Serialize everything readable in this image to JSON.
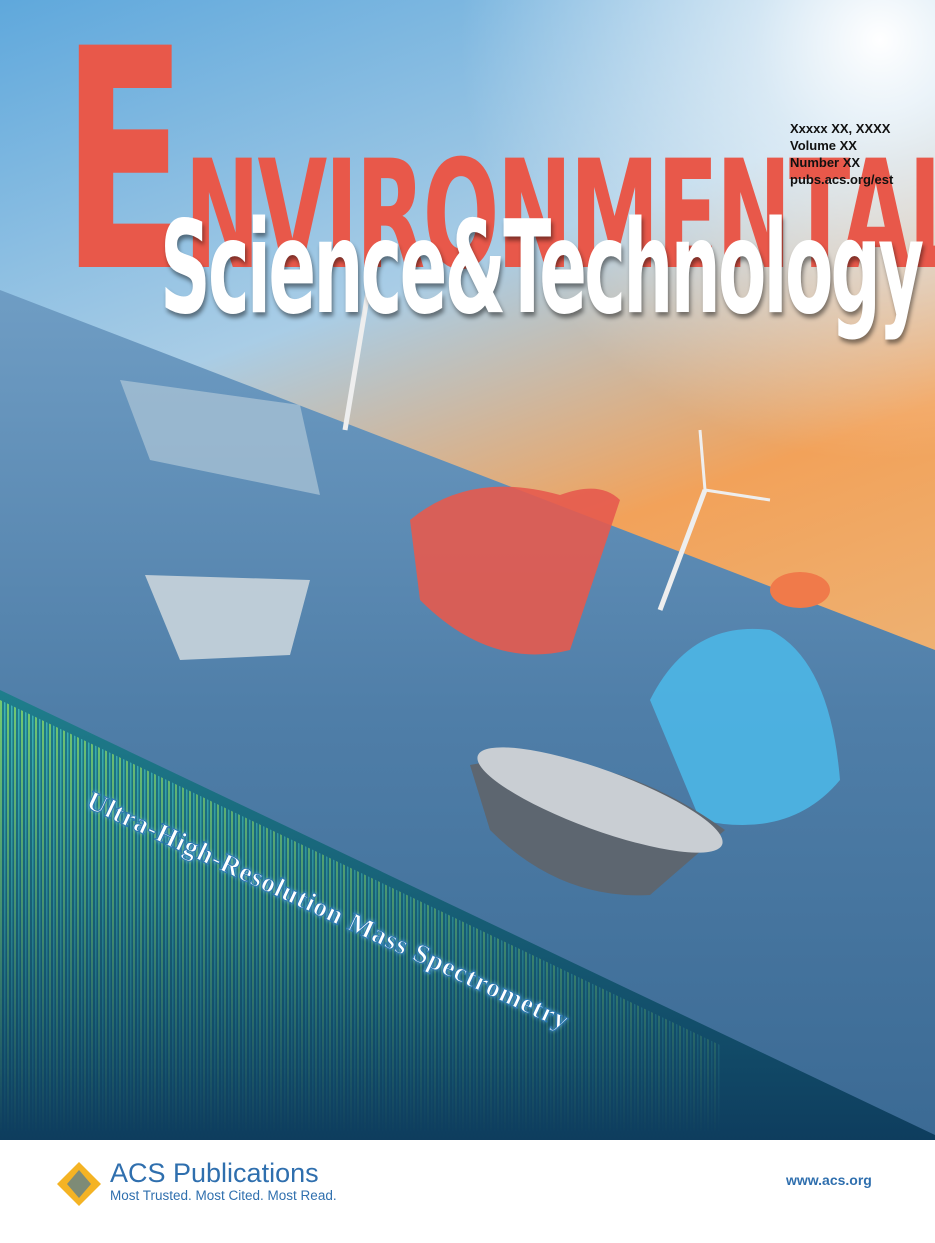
{
  "cover": {
    "title_line1": "Environmental",
    "title_line2": "Science&Technology",
    "issue": [
      "Xxxxx XX, XXXX",
      "Volume XX",
      "Number XX",
      "pubs.acs.org/est"
    ],
    "feature": "Ultra-High-Resolution Mass Spectrometry"
  },
  "footer": {
    "publisher": "ACS Publications",
    "tagline": "Most Trusted. Most Cited. Most Read.",
    "url": "www.acs.org"
  }
}
